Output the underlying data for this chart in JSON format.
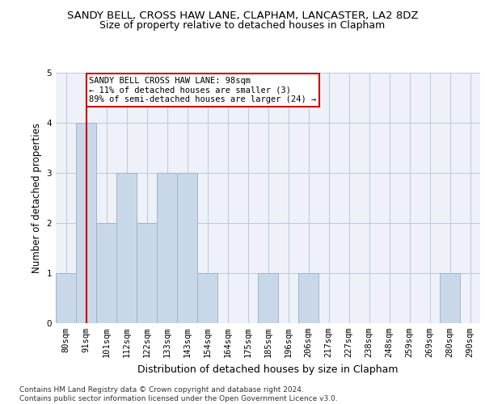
{
  "title": "SANDY BELL, CROSS HAW LANE, CLAPHAM, LANCASTER, LA2 8DZ",
  "subtitle": "Size of property relative to detached houses in Clapham",
  "xlabel": "Distribution of detached houses by size in Clapham",
  "ylabel": "Number of detached properties",
  "bar_labels": [
    "80sqm",
    "91sqm",
    "101sqm",
    "112sqm",
    "122sqm",
    "133sqm",
    "143sqm",
    "154sqm",
    "164sqm",
    "175sqm",
    "185sqm",
    "196sqm",
    "206sqm",
    "217sqm",
    "227sqm",
    "238sqm",
    "248sqm",
    "259sqm",
    "269sqm",
    "280sqm",
    "290sqm"
  ],
  "bar_values": [
    1,
    4,
    2,
    3,
    2,
    3,
    3,
    1,
    0,
    0,
    1,
    0,
    1,
    0,
    0,
    0,
    0,
    0,
    0,
    1,
    0
  ],
  "bar_color": "#c8d8e8",
  "bar_edge_color": "#a0b4cc",
  "grid_color": "#c0ccd8",
  "background_color": "#eef2f8",
  "annotation_box_text": "SANDY BELL CROSS HAW LANE: 98sqm\n← 11% of detached houses are smaller (3)\n89% of semi-detached houses are larger (24) →",
  "annotation_box_color": "#cc0000",
  "vline_x_idx": 1,
  "vline_color": "#cc0000",
  "ylim": [
    0,
    5
  ],
  "yticks": [
    0,
    1,
    2,
    3,
    4,
    5
  ],
  "footer_text": "Contains HM Land Registry data © Crown copyright and database right 2024.\nContains public sector information licensed under the Open Government Licence v3.0.",
  "title_fontsize": 9.5,
  "subtitle_fontsize": 9,
  "xlabel_fontsize": 9,
  "ylabel_fontsize": 8.5,
  "tick_fontsize": 7.5,
  "annotation_fontsize": 7.5,
  "footer_fontsize": 6.5
}
